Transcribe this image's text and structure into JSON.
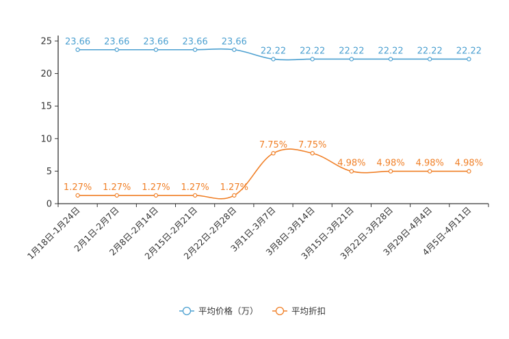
{
  "chart_data": {
    "type": "line",
    "categories": [
      "1月18日-1月24日",
      "2月1日-2月7日",
      "2月8日-2月14日",
      "2月15日-2月21日",
      "2月22日-2月28日",
      "3月1日-3月7日",
      "3月8日-3月14日",
      "3月15日-3月21日",
      "3月22日-3月28日",
      "3月29日-4月4日",
      "4月5日-4月11日"
    ],
    "series": [
      {
        "name": "平均价格（万）",
        "color": "#4a9fd0",
        "values": [
          23.66,
          23.66,
          23.66,
          23.66,
          23.66,
          22.22,
          22.22,
          22.22,
          22.22,
          22.22,
          22.22
        ],
        "labels": [
          "23.66",
          "23.66",
          "23.66",
          "23.66",
          "23.66",
          "22.22",
          "22.22",
          "22.22",
          "22.22",
          "22.22",
          "22.22"
        ]
      },
      {
        "name": "平均折扣",
        "color": "#f07f26",
        "values": [
          1.27,
          1.27,
          1.27,
          1.27,
          1.27,
          7.75,
          7.75,
          4.98,
          4.98,
          4.98,
          4.98
        ],
        "labels": [
          "1.27%",
          "1.27%",
          "1.27%",
          "1.27%",
          "1.27%",
          "7.75%",
          "7.75%",
          "4.98%",
          "4.98%",
          "4.98%",
          "4.98%"
        ]
      }
    ],
    "yticks": [
      "0",
      "5",
      "10",
      "15",
      "20",
      "25"
    ],
    "ylim": [
      0,
      25
    ],
    "title": "",
    "xlabel": "",
    "ylabel": "",
    "legend_position": "bottom-center"
  }
}
